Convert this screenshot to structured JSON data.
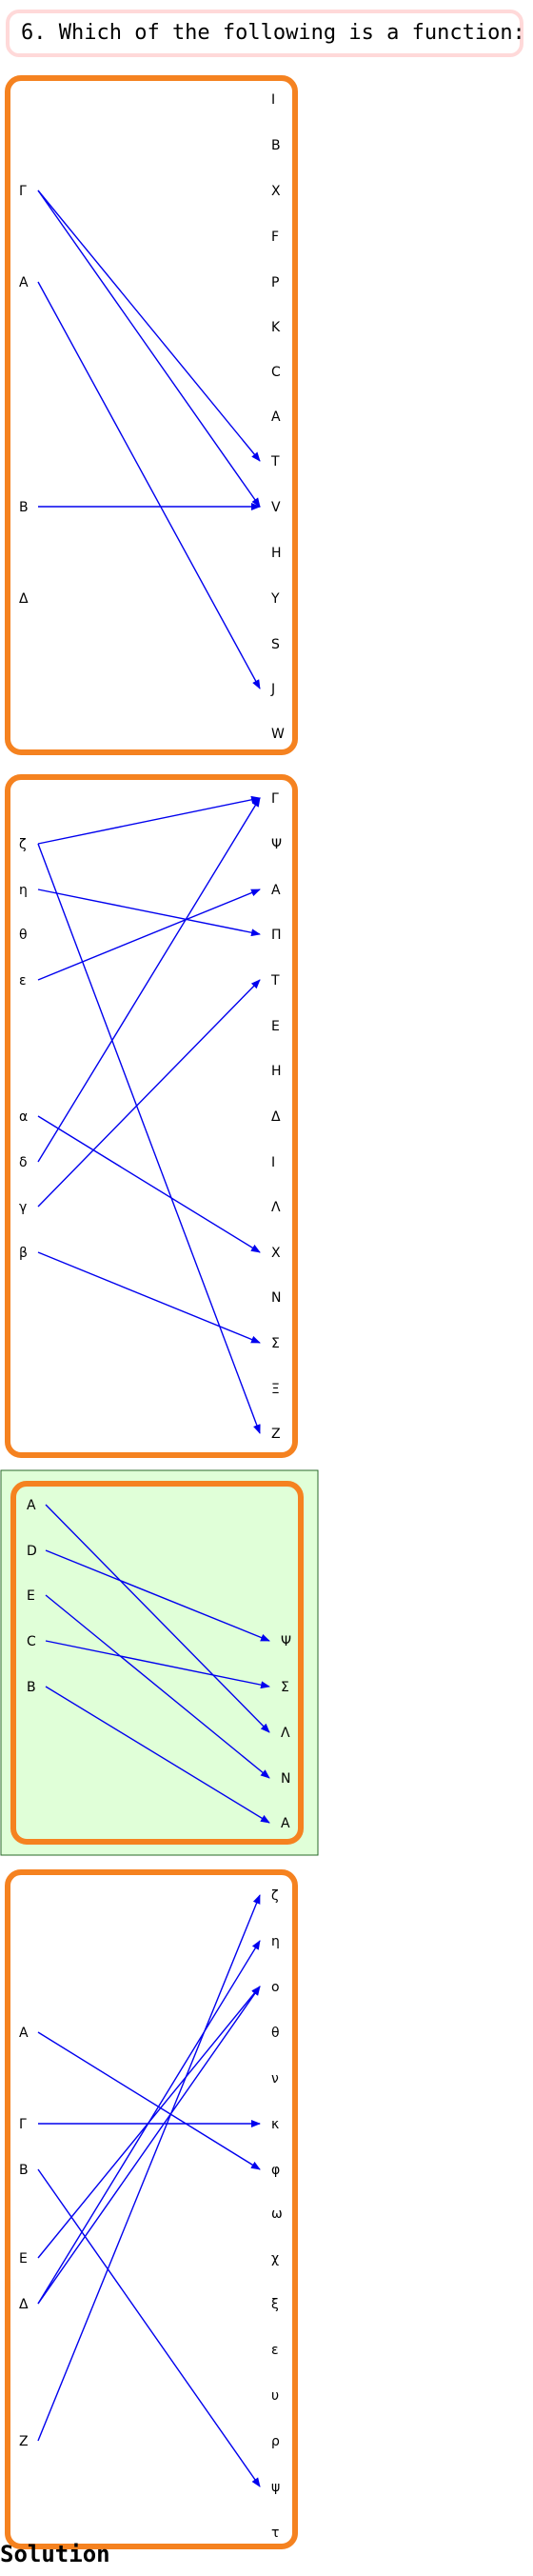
{
  "question": "6. Which of the following is a function:",
  "solution_label": "Solution",
  "colors": {
    "frame": "#f58220",
    "arrow": "#0000ee",
    "answer_fill": "#e0ffd8",
    "answer_border": "#2a6a2a",
    "question_border": "#ffd9d9"
  },
  "options": [
    {
      "selected": false,
      "domain": [
        "Γ",
        "A",
        "B",
        "Δ"
      ],
      "codomain": [
        "I",
        "B",
        "X",
        "F",
        "P",
        "K",
        "C",
        "A",
        "T",
        "V",
        "H",
        "Y",
        "S",
        "J",
        "W"
      ],
      "arrows": [
        [
          "Γ",
          "T"
        ],
        [
          "Γ",
          "V"
        ],
        [
          "A",
          "J"
        ],
        [
          "B",
          "V"
        ]
      ]
    },
    {
      "selected": false,
      "domain": [
        "ζ",
        "η",
        "θ",
        "ε",
        "α",
        "δ",
        "γ",
        "β"
      ],
      "codomain": [
        "Γ",
        "Ψ",
        "A",
        "Π",
        "T",
        "E",
        "H",
        "Δ",
        "I",
        "Λ",
        "X",
        "N",
        "Σ",
        "Ξ",
        "Z"
      ],
      "arrows": [
        [
          "ζ",
          "Γ"
        ],
        [
          "ζ",
          "Z"
        ],
        [
          "η",
          "Π"
        ],
        [
          "ε",
          "A"
        ],
        [
          "α",
          "X"
        ],
        [
          "δ",
          "Γ"
        ],
        [
          "γ",
          "T"
        ],
        [
          "β",
          "Σ"
        ]
      ]
    },
    {
      "selected": true,
      "domain": [
        "A",
        "D",
        "E",
        "C",
        "B"
      ],
      "codomain": [
        "Ψ",
        "Σ",
        "Λ",
        "N",
        "A"
      ],
      "arrows": [
        [
          "A",
          "Λ"
        ],
        [
          "D",
          "Ψ"
        ],
        [
          "E",
          "N"
        ],
        [
          "C",
          "Σ"
        ],
        [
          "B",
          "A"
        ]
      ]
    },
    {
      "selected": false,
      "domain": [
        "A",
        "Γ",
        "B",
        "E",
        "Δ",
        "Z"
      ],
      "codomain": [
        "ζ",
        "η",
        "ο",
        "θ",
        "ν",
        "κ",
        "φ",
        "ω",
        "χ",
        "ξ",
        "ε",
        "υ",
        "ρ",
        "ψ",
        "τ"
      ],
      "arrows": [
        [
          "A",
          "φ"
        ],
        [
          "Γ",
          "κ"
        ],
        [
          "B",
          "ψ"
        ],
        [
          "E",
          "ο"
        ],
        [
          "Δ",
          "η"
        ],
        [
          "Δ",
          "ο"
        ],
        [
          "Z",
          "ζ"
        ]
      ]
    }
  ]
}
